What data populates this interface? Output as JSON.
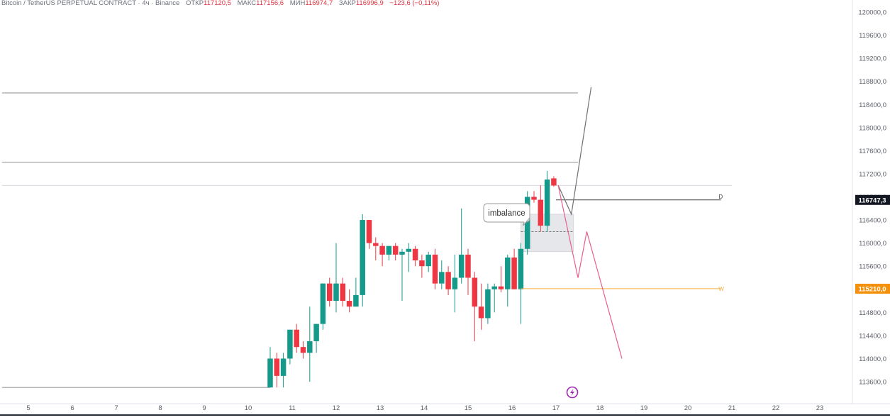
{
  "header": {
    "symbol": "Bitcoin / TetherUS PERPETUAL CONTRACT · 4ч · Binance",
    "open_label": "ОТКР",
    "open_value": "117120,5",
    "high_label": "МАКС",
    "high_value": "117156,6",
    "low_label": "МИН",
    "low_value": "116974,7",
    "close_label": "ЗАКР",
    "close_value": "116996,9",
    "change": "−123,6 (−0,11%)"
  },
  "colors": {
    "up": "#14998a",
    "down": "#ef3744",
    "grid_line": "#8c8c8c",
    "level_line": "#f5b041",
    "projection_up": "#707070",
    "projection_down": "#e8608a",
    "zone_fill": "#e6e7eb",
    "price_tag_dark": "#131722",
    "price_tag_orange": "#f5900a",
    "icon": "#9c27b0"
  },
  "annotations": {
    "imbalance_label": "imbalance",
    "level_d_label": "D",
    "level_w_label": "W"
  },
  "price_tags": {
    "current": "116747,3",
    "level": "115210,0"
  },
  "icons": {
    "event": "lightning-circle-icon"
  },
  "chart_data": {
    "type": "candlestick",
    "title": "Bitcoin / TetherUS PERPETUAL CONTRACT · 4ч · Binance",
    "timeframe": "4ч",
    "x_ticks": [
      "5",
      "6",
      "7",
      "8",
      "9",
      "10",
      "11",
      "12",
      "13",
      "14",
      "15",
      "16",
      "17",
      "18",
      "19",
      "20",
      "21",
      "22",
      "23"
    ],
    "y_ticks": [
      113600,
      114000,
      114400,
      114800,
      115200,
      115600,
      116000,
      116400,
      116800,
      117200,
      117600,
      118000,
      118400,
      118800,
      119200,
      119600,
      120000
    ],
    "y_tick_labels": [
      "113600,0",
      "114000,0",
      "114400,0",
      "114800,0",
      "115200,0",
      "115600,0",
      "116000,0",
      "116400,0",
      "116800,0",
      "117200,0",
      "117600,0",
      "118000,0",
      "118400,0",
      "118800,0",
      "119200,0",
      "119600,0",
      "120000,0"
    ],
    "ylim": [
      113400,
      120100
    ],
    "candles": [
      {
        "t": 10.5,
        "o": 113500,
        "h": 114200,
        "l": 113500,
        "c": 114000
      },
      {
        "t": 10.65,
        "o": 114000,
        "h": 114100,
        "l": 113500,
        "c": 113700
      },
      {
        "t": 10.8,
        "o": 113700,
        "h": 114100,
        "l": 113500,
        "c": 114000
      },
      {
        "t": 10.95,
        "o": 114000,
        "h": 114500,
        "l": 113900,
        "c": 114500
      },
      {
        "t": 11.1,
        "o": 114500,
        "h": 114600,
        "l": 114100,
        "c": 114200
      },
      {
        "t": 11.25,
        "o": 114200,
        "h": 114300,
        "l": 114000,
        "c": 114100
      },
      {
        "t": 11.4,
        "o": 114100,
        "h": 114900,
        "l": 113600,
        "c": 114300
      },
      {
        "t": 11.55,
        "o": 114300,
        "h": 114600,
        "l": 114100,
        "c": 114600
      },
      {
        "t": 11.7,
        "o": 114600,
        "h": 115300,
        "l": 114500,
        "c": 115300
      },
      {
        "t": 11.85,
        "o": 115300,
        "h": 115400,
        "l": 114900,
        "c": 115000
      },
      {
        "t": 12.0,
        "o": 115000,
        "h": 116000,
        "l": 114800,
        "c": 115300
      },
      {
        "t": 12.15,
        "o": 115300,
        "h": 115400,
        "l": 114900,
        "c": 115000
      },
      {
        "t": 12.3,
        "o": 115000,
        "h": 115200,
        "l": 114800,
        "c": 114900
      },
      {
        "t": 12.45,
        "o": 114900,
        "h": 115400,
        "l": 114900,
        "c": 115100
      },
      {
        "t": 12.6,
        "o": 115100,
        "h": 116500,
        "l": 114900,
        "c": 116400
      },
      {
        "t": 12.75,
        "o": 116400,
        "h": 116400,
        "l": 115900,
        "c": 116000
      },
      {
        "t": 12.9,
        "o": 116000,
        "h": 116100,
        "l": 115700,
        "c": 115950
      },
      {
        "t": 13.05,
        "o": 115950,
        "h": 116000,
        "l": 115600,
        "c": 115800
      },
      {
        "t": 13.2,
        "o": 115800,
        "h": 115900,
        "l": 115700,
        "c": 115950
      },
      {
        "t": 13.35,
        "o": 115950,
        "h": 116000,
        "l": 115700,
        "c": 115800
      },
      {
        "t": 13.5,
        "o": 115800,
        "h": 115900,
        "l": 115000,
        "c": 115850
      },
      {
        "t": 13.65,
        "o": 115850,
        "h": 116000,
        "l": 115500,
        "c": 115900
      },
      {
        "t": 13.8,
        "o": 115900,
        "h": 115950,
        "l": 115600,
        "c": 115700
      },
      {
        "t": 13.95,
        "o": 115700,
        "h": 115800,
        "l": 115400,
        "c": 115600
      },
      {
        "t": 14.1,
        "o": 115600,
        "h": 115850,
        "l": 115500,
        "c": 115800
      },
      {
        "t": 14.25,
        "o": 115800,
        "h": 115900,
        "l": 115200,
        "c": 115300
      },
      {
        "t": 14.4,
        "o": 115300,
        "h": 115700,
        "l": 115200,
        "c": 115500
      },
      {
        "t": 14.55,
        "o": 115500,
        "h": 115600,
        "l": 115100,
        "c": 115200
      },
      {
        "t": 14.7,
        "o": 115200,
        "h": 115800,
        "l": 114800,
        "c": 115400
      },
      {
        "t": 14.85,
        "o": 115400,
        "h": 116600,
        "l": 115300,
        "c": 115800
      },
      {
        "t": 15.0,
        "o": 115800,
        "h": 115900,
        "l": 115100,
        "c": 115400
      },
      {
        "t": 15.15,
        "o": 115400,
        "h": 115500,
        "l": 114300,
        "c": 114900
      },
      {
        "t": 15.3,
        "o": 114900,
        "h": 115300,
        "l": 114500,
        "c": 114700
      },
      {
        "t": 15.45,
        "o": 114700,
        "h": 115300,
        "l": 114600,
        "c": 115200
      },
      {
        "t": 15.6,
        "o": 115200,
        "h": 115300,
        "l": 114800,
        "c": 115250
      },
      {
        "t": 15.75,
        "o": 115250,
        "h": 115600,
        "l": 115150,
        "c": 115200
      },
      {
        "t": 15.9,
        "o": 115200,
        "h": 115800,
        "l": 114900,
        "c": 115750
      },
      {
        "t": 16.05,
        "o": 115750,
        "h": 115900,
        "l": 115200,
        "c": 115200
      },
      {
        "t": 16.2,
        "o": 115200,
        "h": 116000,
        "l": 114600,
        "c": 115900
      },
      {
        "t": 16.35,
        "o": 115900,
        "h": 116900,
        "l": 115800,
        "c": 116800
      },
      {
        "t": 16.5,
        "o": 116800,
        "h": 116900,
        "l": 116700,
        "c": 116750
      },
      {
        "t": 16.65,
        "o": 116750,
        "h": 117000,
        "l": 116200,
        "c": 116300
      },
      {
        "t": 16.8,
        "o": 116300,
        "h": 117250,
        "l": 116200,
        "c": 117100
      },
      {
        "t": 16.95,
        "o": 117120.5,
        "h": 117156.6,
        "l": 116974.7,
        "c": 116996.9
      }
    ],
    "horizontal_lines": [
      {
        "from_t": 4.4,
        "to_t": 17.5,
        "y": 118600
      },
      {
        "from_t": 4.4,
        "to_t": 17.5,
        "y": 117400
      },
      {
        "from_t": 4.4,
        "to_t": 21.0,
        "y": 117000
      },
      {
        "from_t": 4.4,
        "to_t": 10.5,
        "y": 113500
      }
    ],
    "levels": [
      {
        "label": "D",
        "y": 116747.3
      },
      {
        "label": "W",
        "y": 115210
      }
    ],
    "imbalance_zone": {
      "from_t": 16.2,
      "to_t": 17.4,
      "y_top": 116500,
      "y_bottom": 115850,
      "mid": 116200
    },
    "projections": [
      {
        "name": "",
        "points": [
          [
            17.05,
            117000
          ],
          [
            17.35,
            116500
          ],
          [
            17.8,
            118700
          ]
        ]
      },
      {
        "name": "",
        "points": [
          [
            17.05,
            117000
          ],
          [
            17.5,
            115400
          ],
          [
            17.7,
            116200
          ],
          [
            18.5,
            114000
          ]
        ]
      }
    ],
    "grid": false,
    "legend": "none"
  }
}
